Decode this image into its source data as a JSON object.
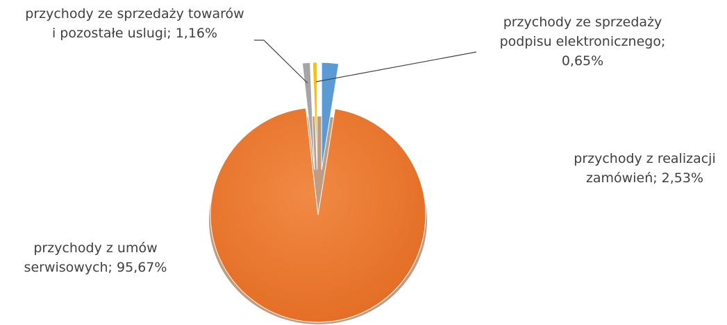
{
  "chart_data": {
    "type": "pie",
    "title": "",
    "slices": [
      {
        "label": "przychody z realizacji\nzamówień; 2,53%",
        "value": 2.53,
        "color": "#5b9bd5"
      },
      {
        "label": "przychody z umów\nserwisowych; 95,67%",
        "value": 95.67,
        "color": "#ed7d31"
      },
      {
        "label": "przychody ze sprzedaży towarów\ni pozostałe uslugi; 1,16%",
        "value": 1.16,
        "color": "#a5a5a5"
      },
      {
        "label": "przychody ze sprzedaży\npodpisu elektronicznego;\n0,65%",
        "value": 0.65,
        "color": "#ffc000"
      }
    ],
    "legend": "none"
  }
}
